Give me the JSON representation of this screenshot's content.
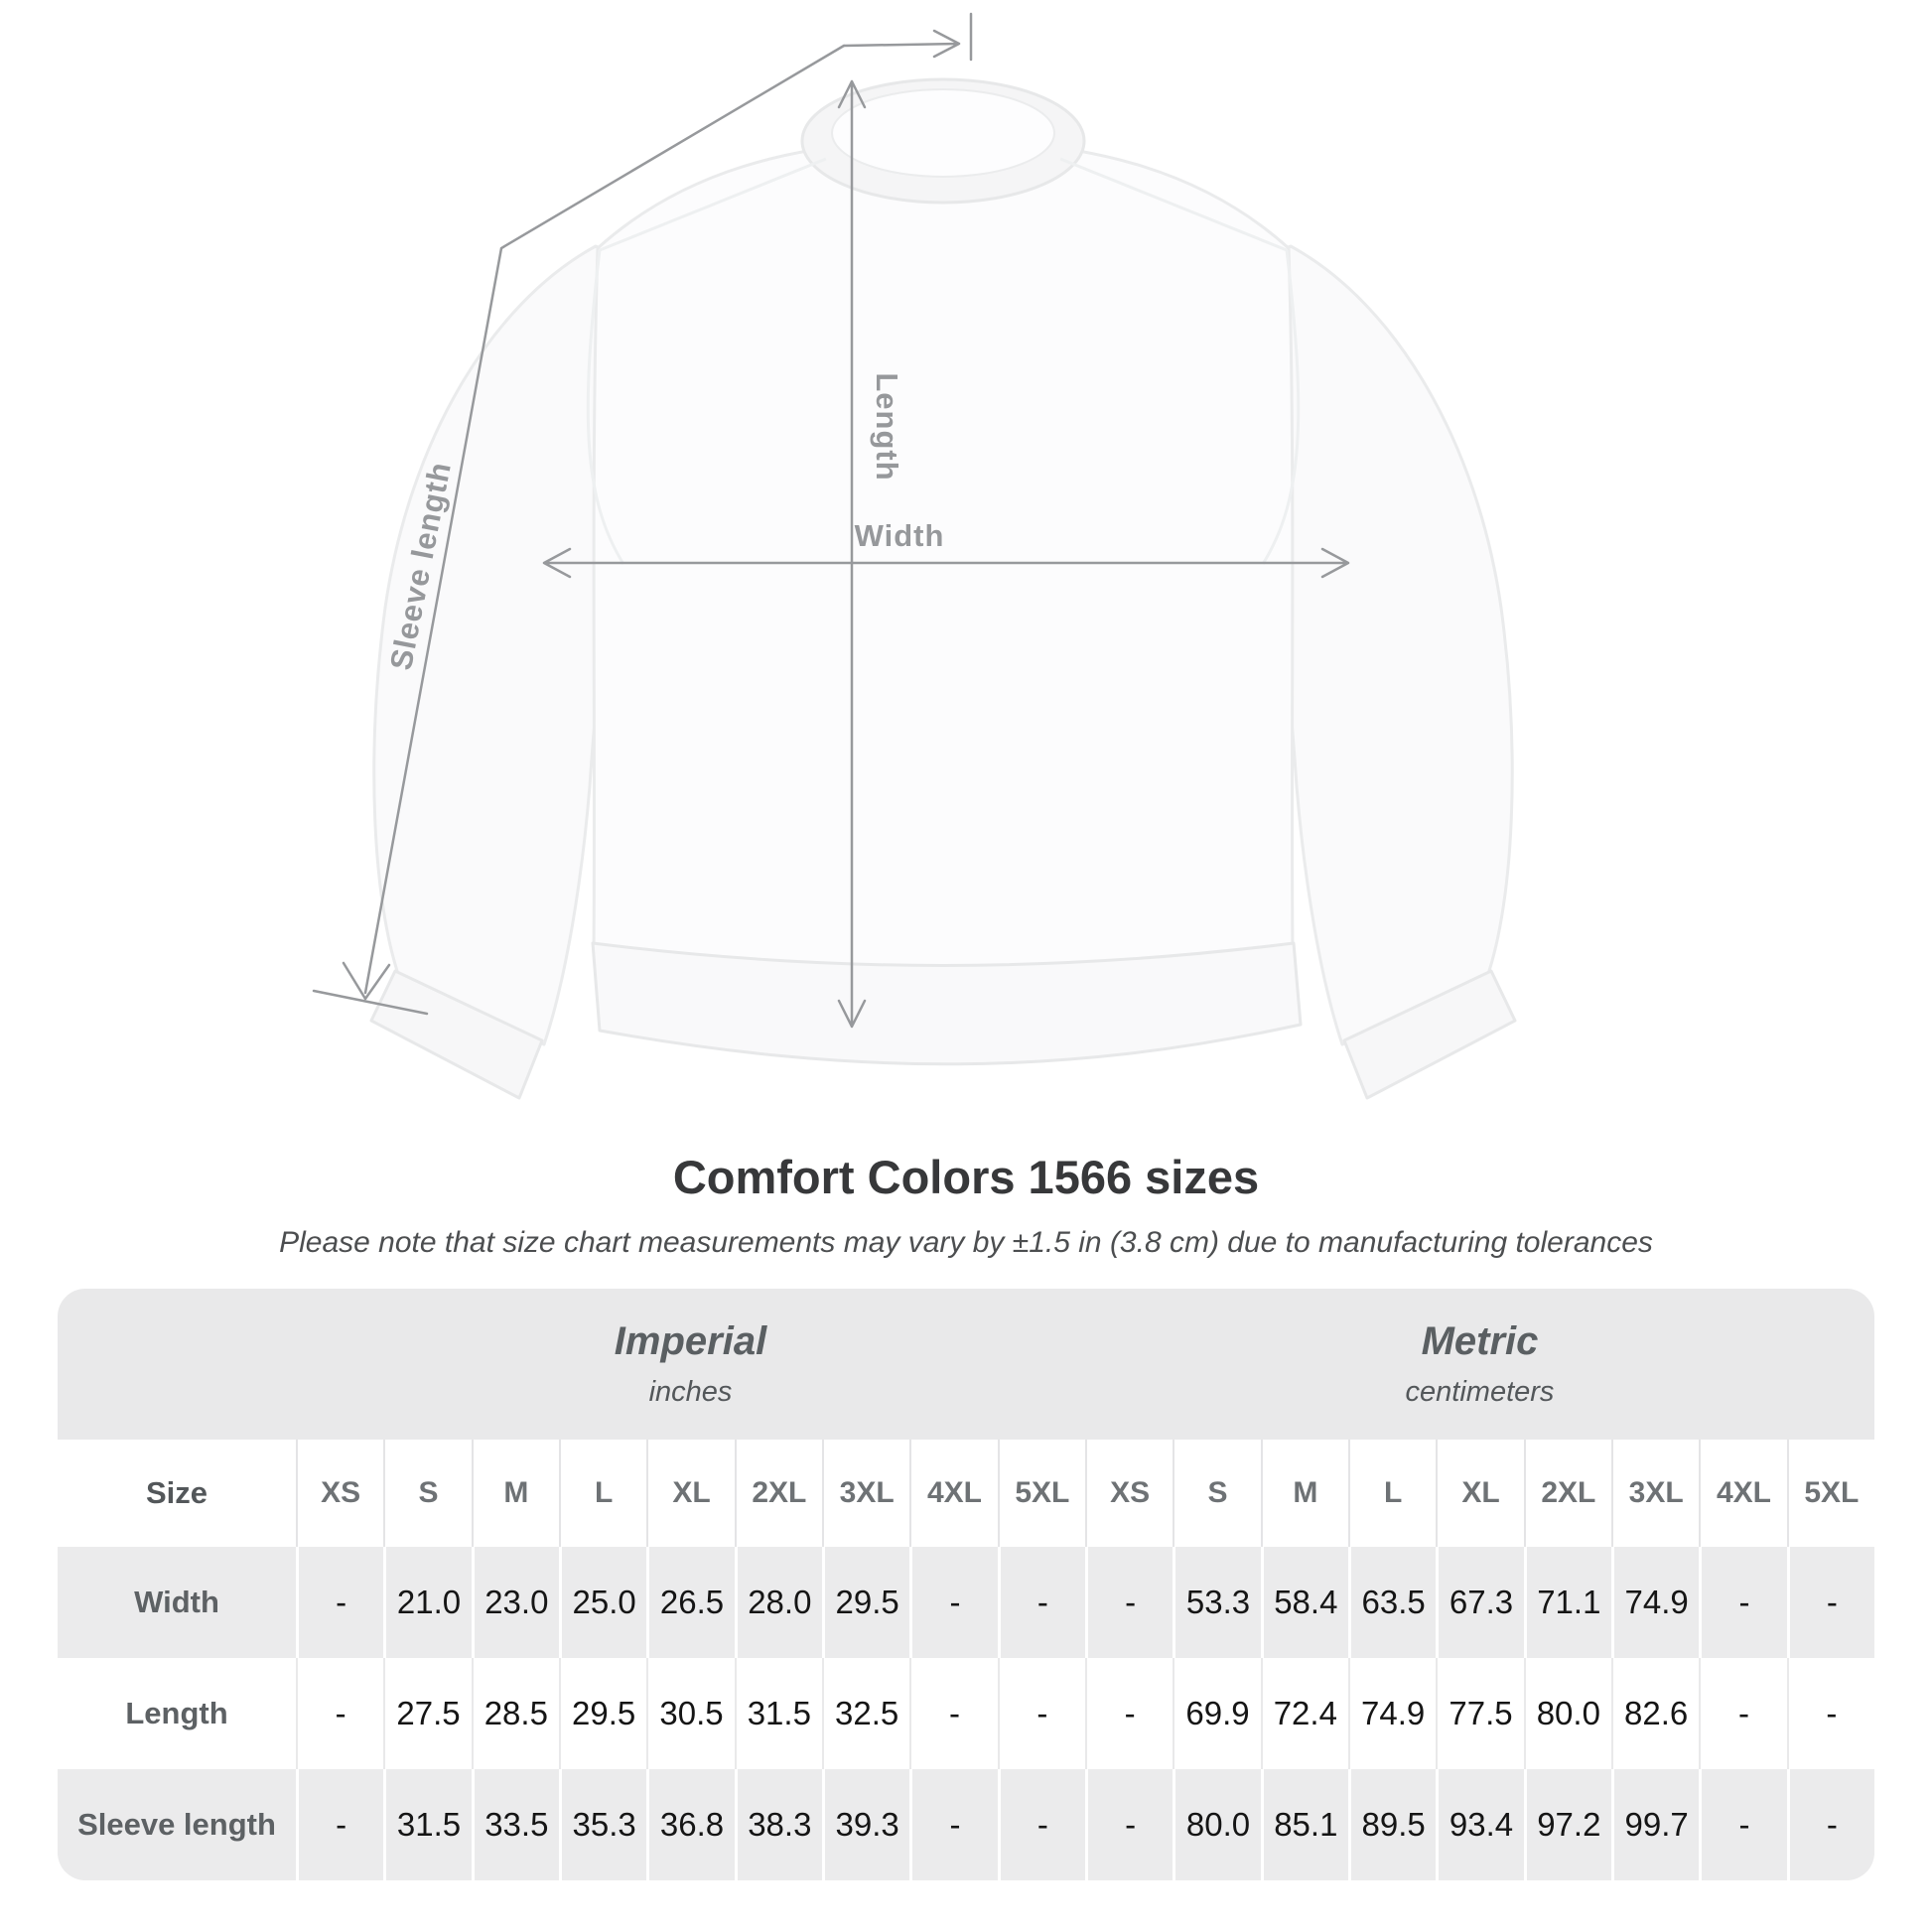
{
  "diagram": {
    "labels": {
      "length": "Length",
      "width": "Width",
      "sleeve_length": "Sleeve length"
    },
    "colors": {
      "measurement_line": "#97999c",
      "garment": "#fcfcfd",
      "table_band": "#e9e9ea"
    }
  },
  "title": "Comfort Colors 1566 sizes",
  "subtitle": "Please note that size chart measurements may vary by ±1.5 in (3.8 cm) due to manufacturing tolerances",
  "table": {
    "size_col_header": "Size",
    "unit_systems": [
      {
        "name": "Imperial",
        "unit": "inches"
      },
      {
        "name": "Metric",
        "unit": "centimeters"
      }
    ],
    "sizes": [
      "XS",
      "S",
      "M",
      "L",
      "XL",
      "2XL",
      "3XL",
      "4XL",
      "5XL"
    ],
    "rows": [
      {
        "label": "Width",
        "imperial": [
          "-",
          "21.0",
          "23.0",
          "25.0",
          "26.5",
          "28.0",
          "29.5",
          "-",
          "-"
        ],
        "metric": [
          "-",
          "53.3",
          "58.4",
          "63.5",
          "67.3",
          "71.1",
          "74.9",
          "-",
          "-"
        ]
      },
      {
        "label": "Length",
        "imperial": [
          "-",
          "27.5",
          "28.5",
          "29.5",
          "30.5",
          "31.5",
          "32.5",
          "-",
          "-"
        ],
        "metric": [
          "-",
          "69.9",
          "72.4",
          "74.9",
          "77.5",
          "80.0",
          "82.6",
          "-",
          "-"
        ]
      },
      {
        "label": "Sleeve length",
        "imperial": [
          "-",
          "31.5",
          "33.5",
          "35.3",
          "36.8",
          "38.3",
          "39.3",
          "-",
          "-"
        ],
        "metric": [
          "-",
          "80.0",
          "85.1",
          "89.5",
          "93.4",
          "97.2",
          "99.7",
          "-",
          "-"
        ]
      }
    ]
  }
}
